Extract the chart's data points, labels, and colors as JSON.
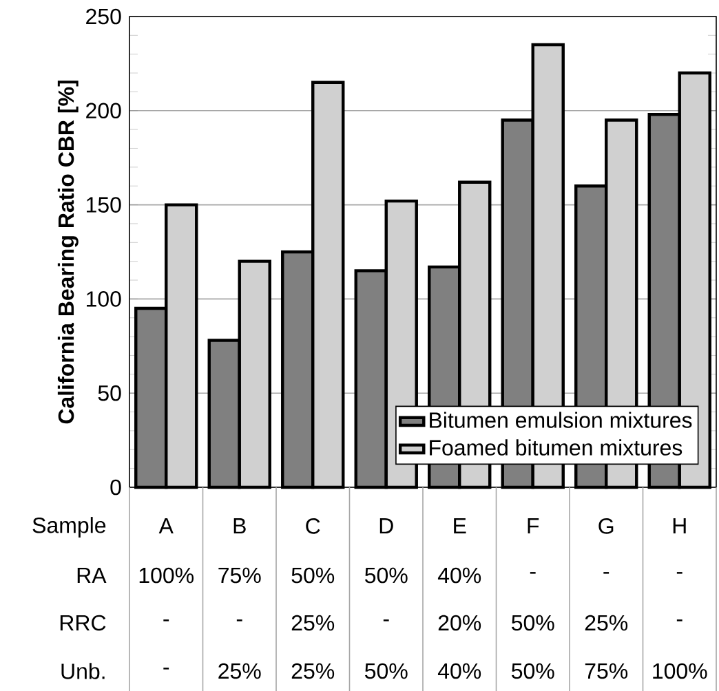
{
  "chart_data": {
    "type": "bar",
    "ylabel": "California Bearing Ratio CBR [%]",
    "xlabel": "Sample",
    "categories": [
      "A",
      "B",
      "C",
      "D",
      "E",
      "F",
      "G",
      "H"
    ],
    "series": [
      {
        "name": "Bitumen emulsion mixtures",
        "color": "#808080",
        "values": [
          95,
          78,
          125,
          115,
          117,
          195,
          160,
          198
        ]
      },
      {
        "name": "Foamed bitumen mixtures",
        "color": "#d0d0d0",
        "values": [
          150,
          120,
          215,
          152,
          162,
          235,
          195,
          220
        ]
      }
    ],
    "ylim": [
      0,
      250
    ],
    "yticks": [
      0,
      {
        "value": 10,
        "label": null
      },
      {
        "value": 20,
        "label": null
      },
      {
        "value": 30,
        "label": null
      },
      {
        "value": 40,
        "label": null
      },
      50,
      {
        "value": 60,
        "label": null
      },
      {
        "value": 70,
        "label": null
      },
      {
        "value": 80,
        "label": null
      },
      {
        "value": 90,
        "label": null
      },
      100,
      {
        "value": 110,
        "label": null
      },
      {
        "value": 120,
        "label": null
      },
      {
        "value": 130,
        "label": null
      },
      {
        "value": 140,
        "label": null
      },
      150,
      {
        "value": 160,
        "label": null
      },
      {
        "value": 170,
        "label": null
      },
      {
        "value": 180,
        "label": null
      },
      {
        "value": 190,
        "label": null
      },
      200,
      {
        "value": 210,
        "label": null
      },
      {
        "value": 220,
        "label": null
      },
      {
        "value": 230,
        "label": null
      },
      {
        "value": 240,
        "label": null
      },
      250
    ],
    "grid": "y",
    "legend": "bottom right",
    "annotations": [
      "RA",
      "100%",
      "75%",
      "50%",
      "50%",
      "40%",
      "-",
      "-",
      "-",
      "RRC",
      "-",
      "-",
      "25%",
      "-",
      "20%",
      "50%",
      "25%",
      "-",
      "Unb.",
      "-",
      "25%",
      "25%",
      "50%",
      "40%",
      "50%",
      "75%",
      "100%"
    ]
  }
}
